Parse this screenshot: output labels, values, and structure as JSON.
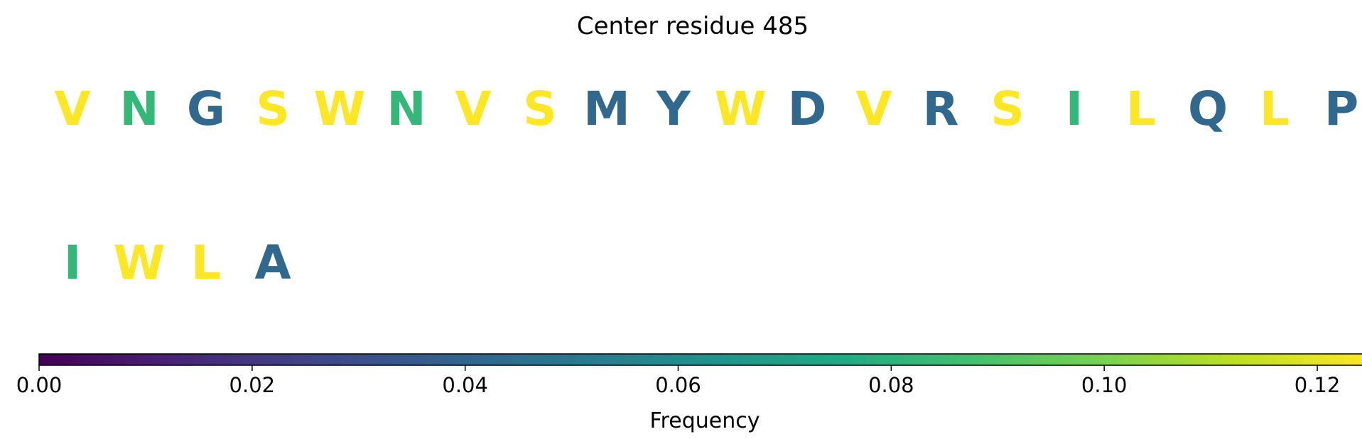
{
  "chart_data": {
    "type": "table",
    "title": "Center residue 485",
    "residues": [
      {
        "letter": "V",
        "frequency": 0.125,
        "color": "#fde725"
      },
      {
        "letter": "N",
        "frequency": 0.0833,
        "color": "#35b779"
      },
      {
        "letter": "G",
        "frequency": 0.0417,
        "color": "#31688e"
      },
      {
        "letter": "S",
        "frequency": 0.125,
        "color": "#fde725"
      },
      {
        "letter": "W",
        "frequency": 0.125,
        "color": "#fde725"
      },
      {
        "letter": "N",
        "frequency": 0.0833,
        "color": "#35b779"
      },
      {
        "letter": "V",
        "frequency": 0.125,
        "color": "#fde725"
      },
      {
        "letter": "S",
        "frequency": 0.125,
        "color": "#fde725"
      },
      {
        "letter": "M",
        "frequency": 0.0417,
        "color": "#31688e"
      },
      {
        "letter": "Y",
        "frequency": 0.0417,
        "color": "#31688e"
      },
      {
        "letter": "W",
        "frequency": 0.125,
        "color": "#fde725"
      },
      {
        "letter": "D",
        "frequency": 0.0417,
        "color": "#31688e"
      },
      {
        "letter": "V",
        "frequency": 0.125,
        "color": "#fde725"
      },
      {
        "letter": "R",
        "frequency": 0.0417,
        "color": "#31688e"
      },
      {
        "letter": "S",
        "frequency": 0.125,
        "color": "#fde725"
      },
      {
        "letter": "I",
        "frequency": 0.0833,
        "color": "#35b779"
      },
      {
        "letter": "L",
        "frequency": 0.125,
        "color": "#fde725"
      },
      {
        "letter": "Q",
        "frequency": 0.0417,
        "color": "#31688e"
      },
      {
        "letter": "L",
        "frequency": 0.125,
        "color": "#fde725"
      },
      {
        "letter": "P",
        "frequency": 0.0417,
        "color": "#31688e"
      },
      {
        "letter": "I",
        "frequency": 0.0833,
        "color": "#35b779"
      },
      {
        "letter": "W",
        "frequency": 0.125,
        "color": "#fde725"
      },
      {
        "letter": "L",
        "frequency": 0.125,
        "color": "#fde725"
      },
      {
        "letter": "A",
        "frequency": 0.0417,
        "color": "#31688e"
      }
    ],
    "colorbar": {
      "colormap": "viridis",
      "range": [
        0,
        0.125
      ],
      "ticks": [
        0.0,
        0.02,
        0.04,
        0.06,
        0.08,
        0.1,
        0.12
      ],
      "tick_labels": [
        "0.00",
        "0.02",
        "0.04",
        "0.06",
        "0.08",
        "0.10",
        "0.12"
      ],
      "label": "Frequency"
    }
  }
}
